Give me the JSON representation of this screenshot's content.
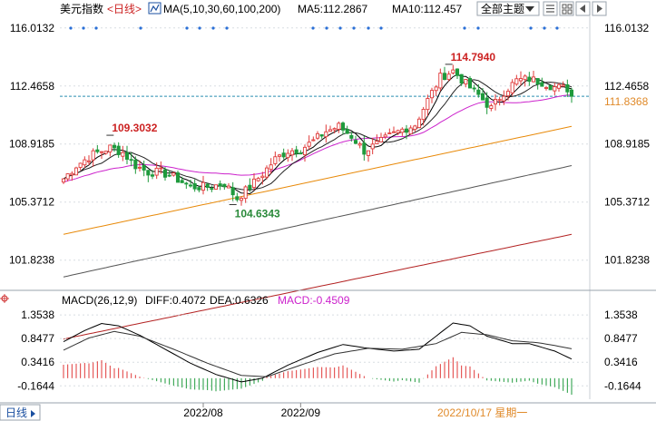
{
  "colors": {
    "up": "#e03a3a",
    "down": "#1e9a3c",
    "ma5": "#000000",
    "ma10": "#222222",
    "ma30": "#cc22cc",
    "ma60": "#e88a0a",
    "ma100": "#555555",
    "ma200": "#b32222",
    "diff": "#000000",
    "dea": "#333333",
    "price_line": "#2a8fb0",
    "axis_text": "#000000",
    "accent": "#1a4fa0",
    "highlight_text": "#cc2222",
    "low_text": "#2a8a3a"
  },
  "header": {
    "instrument": "美元指数",
    "period_tag": "<日线>",
    "ma_label": "MA(5,10,30,60,100,200)",
    "ma5_label": "MA5:112.2867",
    "ma10_label": "MA10:112.457",
    "topic_dropdown": "全部主题",
    "topic_arrow_icon": "dropdown-arrow"
  },
  "macd_header": {
    "label": "MACD(26,12,9)",
    "diff": "DIFF:0.4072",
    "dea": "DEA:0.6326",
    "macd": "MACD:-0.4509"
  },
  "footer": {
    "period_button": "日线",
    "cursor_date": "2022/10/17 星期一"
  },
  "chart_data": [
    {
      "type": "candlestick",
      "title": "美元指数",
      "y_tick_labels": [
        "116.0132",
        "112.4658",
        "108.9185",
        "105.3712",
        "101.8238"
      ],
      "ylim": [
        100.2,
        116.5
      ],
      "current_price_label": "111.8368",
      "current_price": 111.8368,
      "annotations": [
        {
          "text": "109.3032",
          "type": "high",
          "bar_index": 11
        },
        {
          "text": "104.6343",
          "type": "low",
          "bar_index": 40
        },
        {
          "text": "114.7940",
          "type": "high",
          "bar_index": 91
        }
      ],
      "x_tick_labels": [
        {
          "label": "2022/08",
          "bar_index": 33
        },
        {
          "label": "2022/09",
          "bar_index": 56
        }
      ],
      "ma_lines": [
        {
          "name": "MA30",
          "start": [
            0,
            107.2
          ],
          "end": [
            120,
            112.0
          ]
        },
        {
          "name": "MA60",
          "start": [
            0,
            103.4
          ],
          "end": [
            120,
            110.0
          ]
        },
        {
          "name": "MA100",
          "start": [
            0,
            100.8
          ],
          "end": [
            120,
            107.6
          ]
        },
        {
          "name": "MA200",
          "start": [
            0,
            97.0
          ],
          "end": [
            120,
            103.4
          ]
        }
      ],
      "marker_row_dots": "blue markers along top of price panel",
      "anchors": [
        [
          0,
          106.8
        ],
        [
          3,
          107.6
        ],
        [
          7,
          108.3
        ],
        [
          11,
          108.7
        ],
        [
          14,
          108.4
        ],
        [
          17,
          107.6
        ],
        [
          20,
          107.2
        ],
        [
          23,
          107.2
        ],
        [
          26,
          106.9
        ],
        [
          30,
          106.3
        ],
        [
          34,
          106.3
        ],
        [
          38,
          106.5
        ],
        [
          41,
          105.6
        ],
        [
          44,
          106.3
        ],
        [
          47,
          107.1
        ],
        [
          50,
          108.0
        ],
        [
          53,
          108.5
        ],
        [
          56,
          108.6
        ],
        [
          59,
          109.1
        ],
        [
          62,
          109.7
        ],
        [
          65,
          110.0
        ],
        [
          68,
          109.4
        ],
        [
          71,
          108.5
        ],
        [
          74,
          108.9
        ],
        [
          77,
          109.4
        ],
        [
          80,
          109.8
        ],
        [
          83,
          110.1
        ],
        [
          86,
          111.6
        ],
        [
          89,
          113.0
        ],
        [
          92,
          113.4
        ],
        [
          95,
          112.6
        ],
        [
          98,
          111.9
        ],
        [
          101,
          111.1
        ],
        [
          104,
          112.1
        ],
        [
          107,
          112.8
        ],
        [
          110,
          112.9
        ],
        [
          113,
          112.7
        ],
        [
          116,
          112.4
        ],
        [
          119,
          112.3
        ],
        [
          120,
          111.8
        ]
      ]
    },
    {
      "type": "bar",
      "title": "MACD(26,12,9)",
      "y_tick_labels": [
        "1.3538",
        "0.8477",
        "0.3416",
        "-0.1644"
      ],
      "ylim": [
        -0.45,
        1.53
      ],
      "series": [
        {
          "name": "DIFF",
          "anchors": [
            [
              0,
              0.78
            ],
            [
              5,
              1.02
            ],
            [
              9,
              1.17
            ],
            [
              13,
              1.12
            ],
            [
              18,
              0.92
            ],
            [
              24,
              0.62
            ],
            [
              30,
              0.32
            ],
            [
              36,
              0.08
            ],
            [
              42,
              -0.08
            ],
            [
              47,
              0.0
            ],
            [
              53,
              0.28
            ],
            [
              60,
              0.55
            ],
            [
              66,
              0.72
            ],
            [
              72,
              0.64
            ],
            [
              78,
              0.58
            ],
            [
              84,
              0.62
            ],
            [
              88,
              0.9
            ],
            [
              92,
              1.18
            ],
            [
              96,
              1.12
            ],
            [
              100,
              0.9
            ],
            [
              106,
              0.74
            ],
            [
              110,
              0.74
            ],
            [
              116,
              0.58
            ],
            [
              120,
              0.41
            ]
          ]
        },
        {
          "name": "DEA",
          "anchors": [
            [
              0,
              0.6
            ],
            [
              6,
              0.86
            ],
            [
              12,
              1.0
            ],
            [
              18,
              0.9
            ],
            [
              26,
              0.62
            ],
            [
              34,
              0.32
            ],
            [
              42,
              0.06
            ],
            [
              48,
              0.03
            ],
            [
              56,
              0.28
            ],
            [
              64,
              0.52
            ],
            [
              72,
              0.64
            ],
            [
              80,
              0.62
            ],
            [
              88,
              0.74
            ],
            [
              94,
              0.98
            ],
            [
              100,
              0.93
            ],
            [
              106,
              0.8
            ],
            [
              112,
              0.76
            ],
            [
              116,
              0.7
            ],
            [
              120,
              0.63
            ]
          ]
        }
      ]
    }
  ]
}
